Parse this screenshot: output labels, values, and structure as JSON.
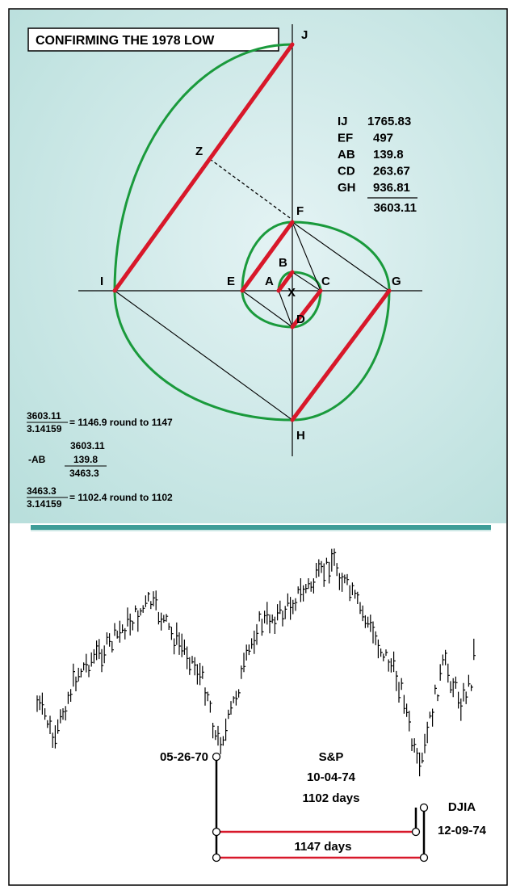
{
  "title": "CONFIRMING THE 1978 LOW",
  "points": [
    "J",
    "Z",
    "F",
    "B",
    "I",
    "E",
    "A",
    "X",
    "C",
    "G",
    "D",
    "H"
  ],
  "table": {
    "rows": [
      [
        "IJ",
        "1765.83"
      ],
      [
        "EF",
        "497"
      ],
      [
        "AB",
        "139.8"
      ],
      [
        "CD",
        "263.67"
      ],
      [
        "GH",
        "936.81"
      ]
    ],
    "total": "3603.11"
  },
  "formulas": {
    "first": {
      "numerator": "3603.11",
      "denominator": "3.14159",
      "result": "= 1146.9 round to 1147"
    },
    "second": {
      "top": "3603.11",
      "op": "-AB",
      "sub": "139.8",
      "result": "3463.3"
    },
    "third": {
      "numerator": "3463.3",
      "denominator": "3.14159",
      "result": "= 1102.4 round to 1102"
    }
  },
  "annotations": {
    "start": "05-26-70",
    "index": "S&P",
    "sp_date": "10-04-74",
    "sp_days": "1102 days",
    "djia_days": "1147 days",
    "djia": "DJIA",
    "djia_date": "12-09-74"
  }
}
